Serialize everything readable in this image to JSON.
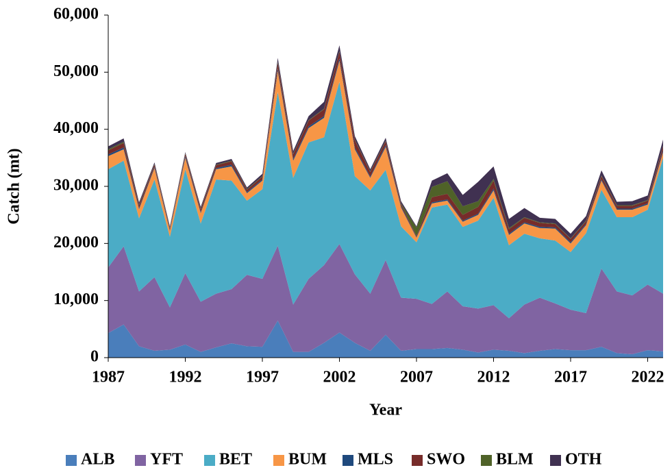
{
  "chart_data": {
    "type": "stacked-area",
    "x_label": "Year",
    "y_label": "Catch (mt)",
    "x": [
      1987,
      1988,
      1989,
      1990,
      1991,
      1992,
      1993,
      1994,
      1995,
      1996,
      1997,
      1998,
      1999,
      2000,
      2001,
      2002,
      2003,
      2004,
      2005,
      2006,
      2007,
      2008,
      2009,
      2010,
      2011,
      2012,
      2013,
      2014,
      2015,
      2016,
      2017,
      2018,
      2019,
      2020,
      2021,
      2022,
      2023
    ],
    "xlim": [
      1987,
      2023
    ],
    "xticks": [
      1987,
      1992,
      1997,
      2002,
      2007,
      2012,
      2017,
      2022
    ],
    "ylim": [
      0,
      60000
    ],
    "yticks": [
      0,
      {
        "value": 10000,
        "label": "10,000"
      },
      {
        "value": 20000,
        "label": "20,000"
      },
      {
        "value": 30000,
        "label": "30,000"
      },
      {
        "value": 40000,
        "label": "40,000"
      },
      {
        "value": 50000,
        "label": "50,000"
      },
      {
        "value": 60000,
        "label": "60,000"
      }
    ],
    "legend": "bottom",
    "series": [
      {
        "name": "ALB",
        "color": "#4a7ebb",
        "values": [
          4300,
          5800,
          2000,
          1200,
          1400,
          2300,
          1000,
          1800,
          2500,
          2000,
          1900,
          6500,
          1000,
          1000,
          2600,
          4400,
          2600,
          1200,
          4000,
          1200,
          1500,
          1500,
          1700,
          1400,
          900,
          1400,
          1200,
          800,
          1200,
          1500,
          1300,
          1300,
          1900,
          800,
          600,
          1300,
          1100
        ]
      },
      {
        "name": "YFT",
        "color": "#8064a2",
        "values": [
          11500,
          13700,
          9600,
          12900,
          7400,
          12500,
          8800,
          9400,
          9500,
          12500,
          11900,
          13100,
          8300,
          12800,
          13600,
          15500,
          12000,
          10000,
          13100,
          9300,
          8800,
          7900,
          9900,
          7600,
          7700,
          7800,
          5700,
          8500,
          9300,
          8000,
          7100,
          6500,
          13700,
          10800,
          10300,
          11500,
          10100
        ]
      },
      {
        "name": "BET",
        "color": "#4bacc6",
        "values": [
          17200,
          15000,
          12800,
          17100,
          12400,
          18200,
          13700,
          20000,
          19000,
          13000,
          15700,
          26900,
          22200,
          23900,
          22400,
          28400,
          17200,
          18100,
          15800,
          12500,
          9900,
          16900,
          15200,
          13900,
          15400,
          18800,
          12800,
          12400,
          10400,
          11000,
          10100,
          14000,
          13800,
          13000,
          13700,
          13100,
          23800
        ]
      },
      {
        "name": "BUM",
        "color": "#f79646",
        "values": [
          2300,
          2000,
          1600,
          2000,
          1000,
          2000,
          1800,
          1800,
          2500,
          1300,
          1500,
          3700,
          3000,
          2500,
          3400,
          3700,
          4700,
          2200,
          4000,
          3300,
          800,
          700,
          700,
          900,
          1000,
          1300,
          1800,
          1800,
          1800,
          2100,
          1500,
          1400,
          1600,
          1300,
          1300,
          900,
          1000
        ]
      },
      {
        "name": "MLS",
        "color": "#1f497d",
        "values": [
          300,
          300,
          200,
          200,
          200,
          300,
          200,
          200,
          300,
          200,
          200,
          400,
          300,
          300,
          300,
          400,
          300,
          200,
          300,
          200,
          100,
          200,
          200,
          200,
          200,
          300,
          200,
          200,
          200,
          200,
          200,
          200,
          200,
          200,
          200,
          200,
          300
        ]
      },
      {
        "name": "SWO",
        "color": "#772c2a",
        "values": [
          700,
          800,
          500,
          400,
          300,
          400,
          500,
          500,
          600,
          400,
          500,
          1000,
          800,
          1000,
          1200,
          1200,
          1300,
          800,
          700,
          400,
          200,
          900,
          1000,
          1000,
          1200,
          1400,
          800,
          800,
          700,
          600,
          600,
          500,
          600,
          500,
          500,
          500,
          700
        ]
      },
      {
        "name": "BLM",
        "color": "#4f6228",
        "values": [
          200,
          200,
          100,
          100,
          100,
          100,
          100,
          100,
          100,
          100,
          100,
          200,
          100,
          100,
          100,
          100,
          100,
          100,
          100,
          100,
          1500,
          1800,
          2200,
          1500,
          1000,
          300,
          200,
          100,
          100,
          100,
          100,
          100,
          100,
          100,
          100,
          100,
          100
        ]
      },
      {
        "name": "OTH",
        "color": "#403151",
        "values": [
          500,
          600,
          400,
          300,
          200,
          200,
          300,
          300,
          300,
          300,
          400,
          700,
          500,
          700,
          1200,
          1000,
          600,
          400,
          500,
          400,
          200,
          1100,
          1400,
          2000,
          3400,
          2200,
          1600,
          1600,
          800,
          800,
          800,
          800,
          900,
          600,
          700,
          800,
          1100
        ]
      }
    ]
  }
}
